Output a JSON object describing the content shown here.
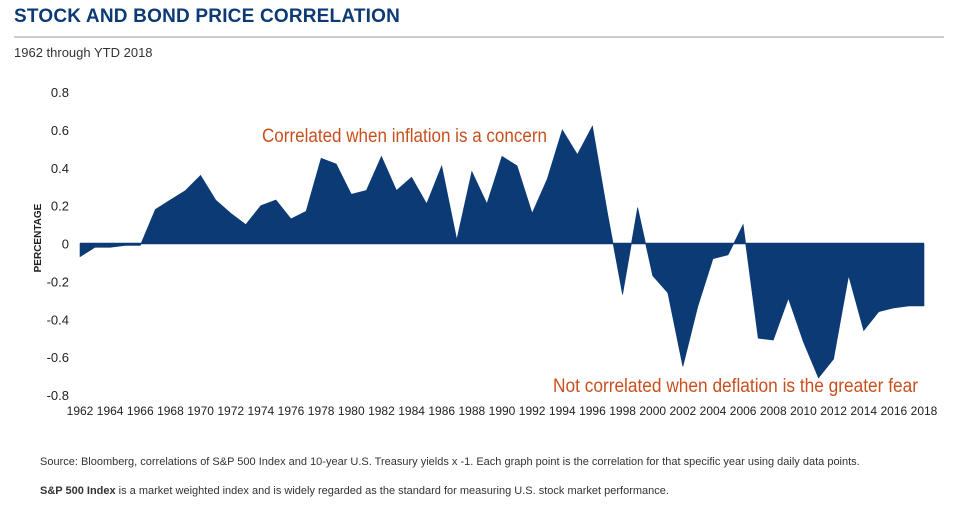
{
  "header": {
    "title": "STOCK AND BOND PRICE CORRELATION",
    "subtitle": "1962 through YTD 2018"
  },
  "footer": {
    "source": "Source: Bloomberg, correlations of S&P 500 Index and 10-year U.S. Treasury yields x -1.  Each graph point is the correlation for that specific year using daily data points.",
    "note_bold": "S&P 500 Index",
    "note_rest": " is a market weighted index and is widely regarded as the standard for measuring U.S. stock market performance."
  },
  "colors": {
    "area": "#0b3a75",
    "annotation": "#c8501e",
    "title": "#0b3a75"
  },
  "chart_data": {
    "type": "area",
    "title": "STOCK AND BOND PRICE CORRELATION",
    "subtitle": "1962 through YTD 2018",
    "ylabel": "PERCENTAGE",
    "xlabel": "",
    "ylim": [
      -0.8,
      0.8
    ],
    "yticks": [
      0.8,
      0.6,
      0.4,
      0.2,
      0,
      -0.2,
      -0.4,
      -0.6,
      -0.8
    ],
    "ytick_labels": [
      "0.8",
      "0.6",
      "0.4",
      "0.2",
      "0",
      "-0.2",
      "-0.4",
      "-0.6",
      "-0.8"
    ],
    "xtick_labels": [
      "1962",
      "1964",
      "1966",
      "1968",
      "1970",
      "1972",
      "1974",
      "1976",
      "1978",
      "1980",
      "1982",
      "1984",
      "1986",
      "1988",
      "1990",
      "1992",
      "1994",
      "1996",
      "1998",
      "2000",
      "2002",
      "2004",
      "2006",
      "2008",
      "2010",
      "2012",
      "2014",
      "2016",
      "2018"
    ],
    "x": [
      1962,
      1963,
      1964,
      1965,
      1966,
      1967,
      1968,
      1969,
      1970,
      1971,
      1972,
      1973,
      1974,
      1975,
      1976,
      1977,
      1978,
      1979,
      1980,
      1981,
      1982,
      1983,
      1984,
      1985,
      1986,
      1987,
      1988,
      1989,
      1990,
      1991,
      1992,
      1993,
      1994,
      1995,
      1996,
      1997,
      1998,
      1999,
      2000,
      2001,
      2002,
      2003,
      2004,
      2005,
      2006,
      2007,
      2008,
      2009,
      2010,
      2011,
      2012,
      2013,
      2014,
      2015,
      2016,
      2017,
      2018
    ],
    "values": [
      -0.07,
      -0.02,
      -0.02,
      -0.01,
      -0.01,
      0.18,
      0.23,
      0.28,
      0.36,
      0.23,
      0.16,
      0.1,
      0.2,
      0.23,
      0.13,
      0.17,
      0.45,
      0.42,
      0.26,
      0.28,
      0.46,
      0.28,
      0.35,
      0.21,
      0.41,
      0.02,
      0.38,
      0.21,
      0.46,
      0.41,
      0.16,
      0.34,
      0.6,
      0.47,
      0.62,
      0.16,
      -0.27,
      0.19,
      -0.17,
      -0.26,
      -0.65,
      -0.33,
      -0.08,
      -0.06,
      0.1,
      -0.5,
      -0.51,
      -0.29,
      -0.52,
      -0.71,
      -0.61,
      -0.17,
      -0.46,
      -0.36,
      -0.34,
      -0.33,
      -0.33
    ],
    "annotations": [
      {
        "text": "Correlated when inflation is a concern",
        "near_year": 1980,
        "near_value": 0.56
      },
      {
        "text": "Not correlated when deflation is the greater fear",
        "near_year": 2000,
        "near_value": -0.73
      }
    ],
    "grid": false,
    "legend": "none"
  }
}
